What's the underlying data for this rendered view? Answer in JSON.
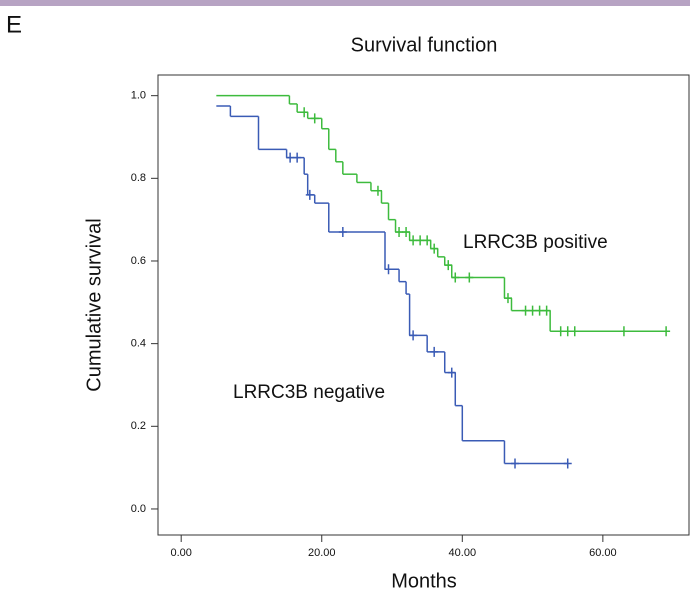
{
  "panel_label": "E",
  "chart_data": {
    "type": "survival",
    "title": "Survival function",
    "xlabel": "Months",
    "ylabel": "Cumulative survival",
    "xlim": [
      -3.3,
      72.4
    ],
    "ylim": [
      -0.063,
      1.05
    ],
    "xticks": [
      {
        "value": 0,
        "label": "0.00"
      },
      {
        "value": 20,
        "label": "20.00"
      },
      {
        "value": 40,
        "label": "40.00"
      },
      {
        "value": 60,
        "label": "60.00"
      }
    ],
    "yticks": [
      {
        "value": 0,
        "label": "0.0"
      },
      0.2,
      0.4,
      0.6,
      0.8,
      {
        "value": 1,
        "label": "1.0"
      }
    ],
    "series": [
      {
        "name": "LRRC3B positive",
        "color": "#3dbb3d",
        "x": [
          5,
          15.4,
          16.5,
          18,
          20,
          21,
          22,
          23,
          25,
          27,
          28.5,
          29.5,
          30.5,
          32.5,
          35.5,
          36.5,
          37.5,
          38.5,
          46,
          47,
          52.5
        ],
        "values": [
          1.0,
          0.98,
          0.96,
          0.945,
          0.92,
          0.87,
          0.84,
          0.81,
          0.79,
          0.77,
          0.74,
          0.7,
          0.67,
          0.65,
          0.63,
          0.61,
          0.59,
          0.56,
          0.51,
          0.48,
          0.43
        ],
        "censor_x": [
          17.5,
          19,
          28,
          31,
          32,
          33,
          34,
          35,
          36,
          38,
          39,
          41,
          46.5,
          49,
          50,
          51,
          52,
          54,
          55,
          56,
          63,
          69
        ],
        "censor_values": [
          0.96,
          0.945,
          0.77,
          0.67,
          0.67,
          0.65,
          0.65,
          0.65,
          0.63,
          0.59,
          0.56,
          0.56,
          0.51,
          0.48,
          0.48,
          0.48,
          0.48,
          0.43,
          0.43,
          0.43,
          0.43,
          0.43
        ]
      },
      {
        "name": "LRRC3B negative",
        "color": "#3a5bb5",
        "x": [
          5,
          7,
          11,
          15,
          17.5,
          18,
          19,
          21,
          29,
          31,
          32,
          32.5,
          35,
          37.5,
          39,
          40,
          46
        ],
        "values": [
          0.975,
          0.95,
          0.87,
          0.85,
          0.81,
          0.76,
          0.74,
          0.67,
          0.58,
          0.55,
          0.52,
          0.42,
          0.38,
          0.33,
          0.25,
          0.165,
          0.11
        ],
        "censor_x": [
          15.5,
          16.5,
          18.3,
          23,
          29.5,
          33,
          36,
          38.5,
          47.5,
          55
        ],
        "censor_values": [
          0.85,
          0.85,
          0.76,
          0.67,
          0.58,
          0.42,
          0.38,
          0.33,
          0.11,
          0.11
        ]
      }
    ]
  }
}
